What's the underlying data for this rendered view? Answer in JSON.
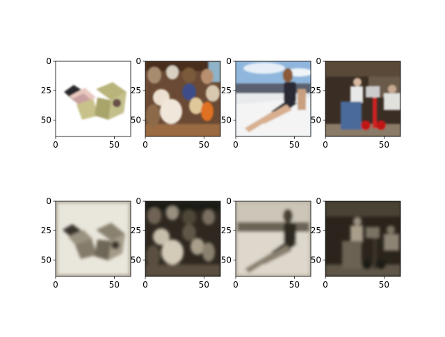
{
  "figure": {
    "background": "#ffffff"
  },
  "chart_data": [
    {
      "type": "heatmap",
      "content": "cosmetic compact boxes (color)",
      "xlim": [
        0,
        64
      ],
      "ylim": [
        64,
        0
      ],
      "x_ticks": [
        "0",
        "50"
      ],
      "y_ticks": [
        "0",
        "25",
        "50"
      ]
    },
    {
      "type": "heatmap",
      "content": "teddy bears on shelf (color)",
      "xlim": [
        0,
        64
      ],
      "ylim": [
        64,
        0
      ],
      "x_ticks": [
        "0",
        "50"
      ],
      "y_ticks": [
        "0",
        "25",
        "50"
      ]
    },
    {
      "type": "heatmap",
      "content": "woman sitting on boat (color)",
      "xlim": [
        0,
        64
      ],
      "ylim": [
        64,
        0
      ],
      "x_ticks": [
        "0",
        "50"
      ],
      "y_ticks": [
        "0",
        "25",
        "50"
      ]
    },
    {
      "type": "heatmap",
      "content": "people with red hand truck (color)",
      "xlim": [
        0,
        64
      ],
      "ylim": [
        64,
        0
      ],
      "x_ticks": [
        "0",
        "50"
      ],
      "y_ticks": [
        "0",
        "25",
        "50"
      ]
    },
    {
      "type": "heatmap",
      "content": "cosmetic compact boxes (sepia reconstruction)",
      "xlim": [
        0,
        64
      ],
      "ylim": [
        64,
        0
      ],
      "x_ticks": [
        "0",
        "50"
      ],
      "y_ticks": [
        "0",
        "25",
        "50"
      ]
    },
    {
      "type": "heatmap",
      "content": "teddy bears on shelf (sepia reconstruction)",
      "xlim": [
        0,
        64
      ],
      "ylim": [
        64,
        0
      ],
      "x_ticks": [
        "0",
        "50"
      ],
      "y_ticks": [
        "0",
        "25",
        "50"
      ]
    },
    {
      "type": "heatmap",
      "content": "woman sitting on boat (sepia reconstruction)",
      "xlim": [
        0,
        64
      ],
      "ylim": [
        64,
        0
      ],
      "x_ticks": [
        "0",
        "50"
      ],
      "y_ticks": [
        "0",
        "25",
        "50"
      ]
    },
    {
      "type": "heatmap",
      "content": "people with red hand truck (sepia reconstruction)",
      "xlim": [
        0,
        64
      ],
      "ylim": [
        64,
        0
      ],
      "x_ticks": [
        "0",
        "50"
      ],
      "y_ticks": [
        "0",
        "25",
        "50"
      ]
    }
  ]
}
